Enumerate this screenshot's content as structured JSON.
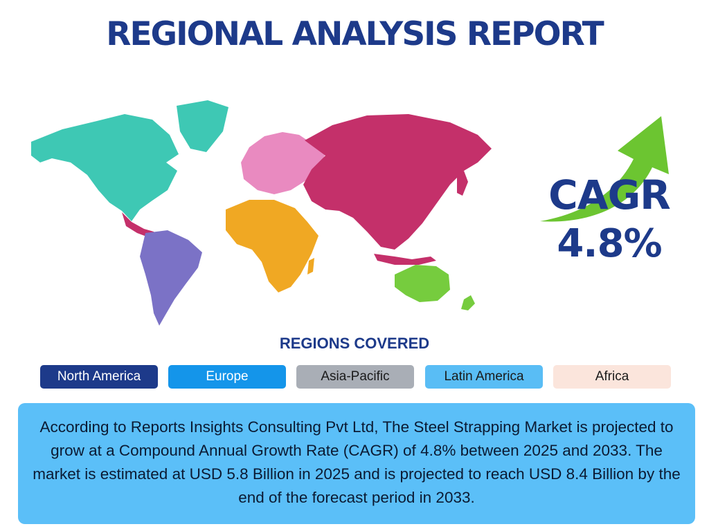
{
  "title": "REGIONAL ANALYSIS REPORT",
  "map": {
    "icon": "world-map",
    "region_colors": {
      "north_america": "#3ec8b4",
      "latin_america": "#7b72c6",
      "europe": "#e98ac0",
      "asia": "#c4306a",
      "africa": "#f0a823",
      "oceania": "#76cc3e"
    }
  },
  "cagr": {
    "label": "CAGR",
    "value": "4.8%",
    "arrow_icon": "growth-arrow-icon",
    "arrow_color": "#6cc531"
  },
  "regions": {
    "heading": "REGIONS COVERED",
    "items": [
      {
        "label": "North America",
        "bg": "#1d3a8a",
        "fg": "#ffffff"
      },
      {
        "label": "Europe",
        "bg": "#1495ea",
        "fg": "#ffffff"
      },
      {
        "label": "Asia-Pacific",
        "bg": "#a9aeb6",
        "fg": "#1a1a1a"
      },
      {
        "label": "Latin America",
        "bg": "#59bdf5",
        "fg": "#1a1a1a"
      },
      {
        "label": "Africa",
        "bg": "#fbe5dc",
        "fg": "#1a1a1a"
      }
    ]
  },
  "summary": {
    "text": "According to Reports Insights Consulting Pvt Ltd, The Steel Strapping Market is projected to grow at a Compound Annual Growth Rate (CAGR) of 4.8% between 2025 and 2033. The market is estimated at USD 5.8 Billion in 2025 and is projected to reach USD 8.4 Billion by the end of the forecast period in 2033."
  }
}
